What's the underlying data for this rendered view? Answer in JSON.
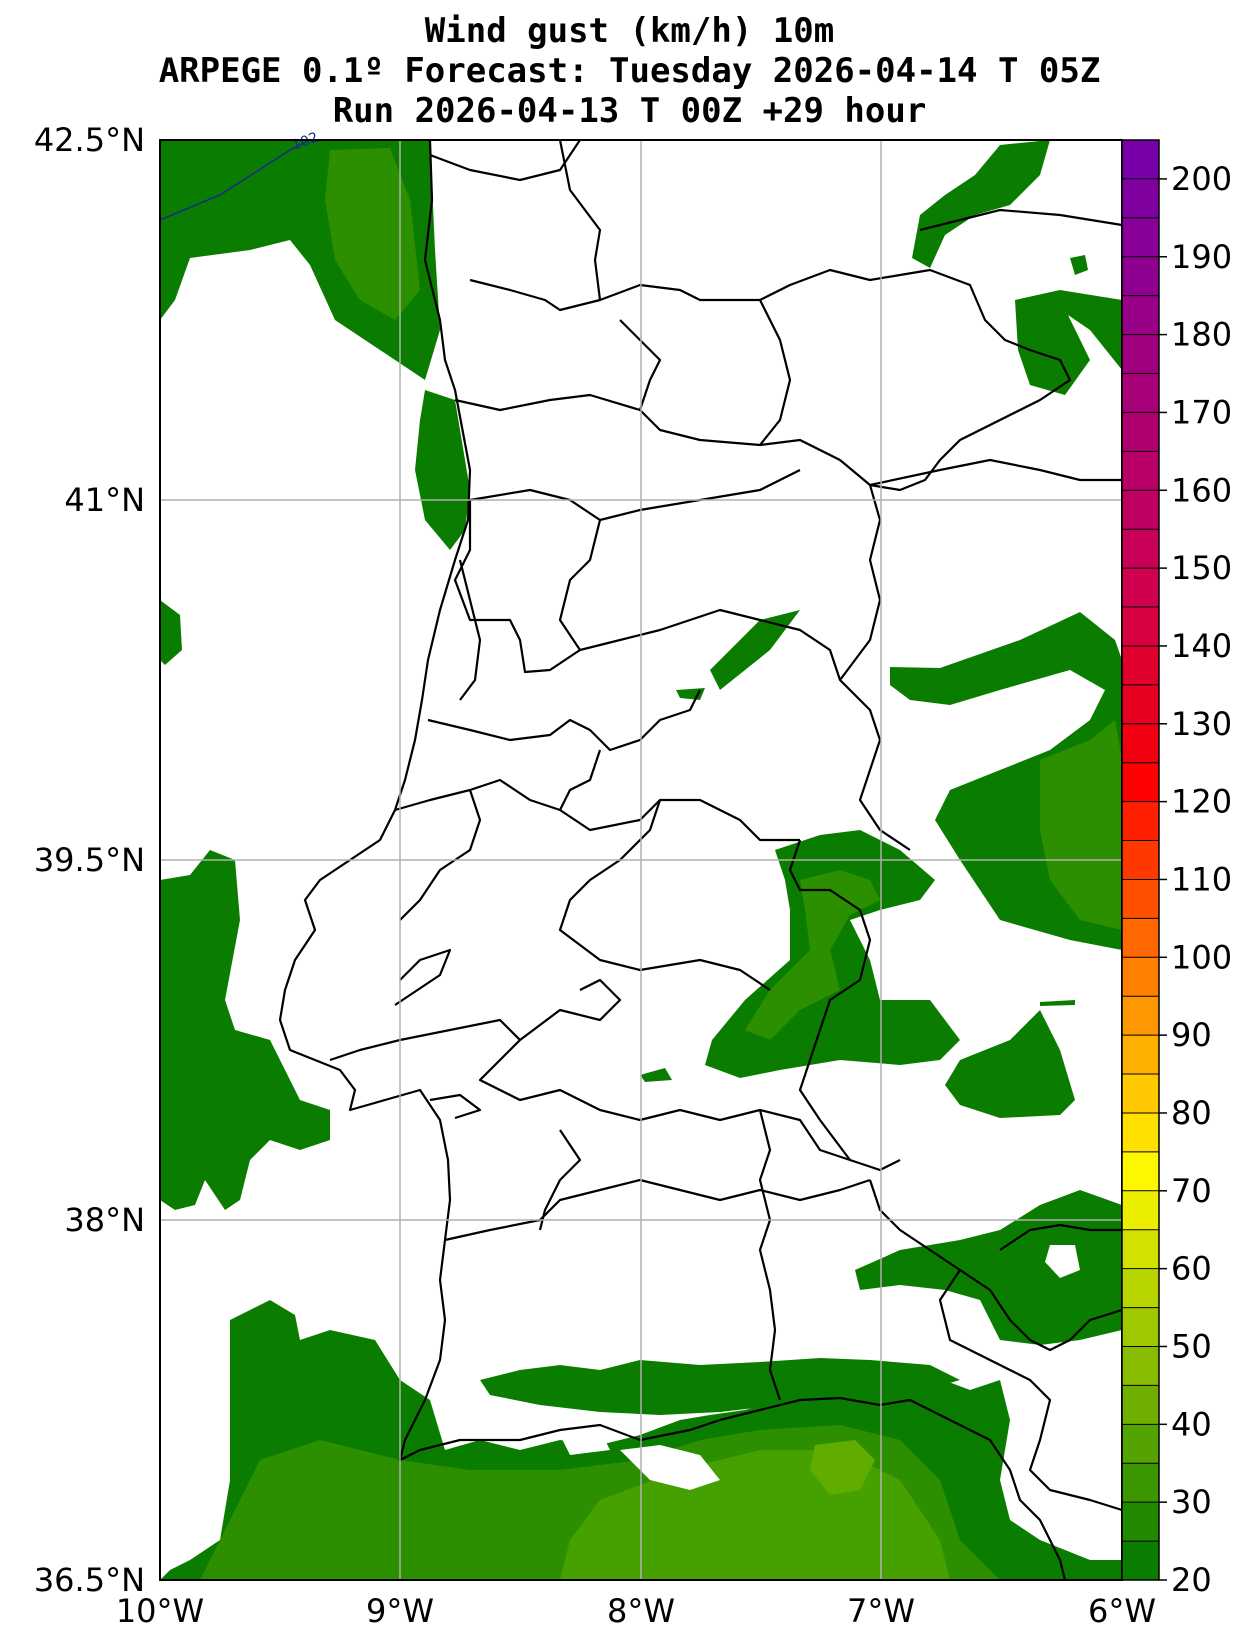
{
  "title": {
    "line1": "Wind gust (km/h) 10m",
    "line2": "ARPEGE 0.1º Forecast: Tuesday 2026-04-14 T 05Z",
    "line3": "Run 2026-04-13 T 00Z +29 hour"
  },
  "axes": {
    "lat_labels": [
      "42.5°N",
      "41°N",
      "39.5°N",
      "38°N",
      "36.5°N"
    ],
    "lon_labels": [
      "10°W",
      "9°W",
      "8°W",
      "7°W",
      "6°W"
    ],
    "lat_range": [
      36.5,
      42.5
    ],
    "lon_range": [
      -10,
      -6
    ],
    "grid": true
  },
  "isobar_label": "102",
  "colorbar": {
    "tick_labels": [
      "20",
      "30",
      "40",
      "50",
      "60",
      "70",
      "80",
      "90",
      "100",
      "110",
      "120",
      "130",
      "140",
      "150",
      "160",
      "170",
      "180",
      "190",
      "200"
    ],
    "range": [
      20,
      205
    ],
    "step": 5,
    "colors": [
      "#0a7d00",
      "#238a00",
      "#3c9600",
      "#55a300",
      "#6eaf00",
      "#87bc00",
      "#a0c800",
      "#b9d500",
      "#d2e100",
      "#ebee00",
      "#fff700",
      "#ffe000",
      "#ffc800",
      "#ffb000",
      "#ff9800",
      "#ff8000",
      "#ff6800",
      "#ff5000",
      "#ff3800",
      "#ff2000",
      "#ff0000",
      "#f00010",
      "#e80020",
      "#e00030",
      "#d80040",
      "#d00050",
      "#c80058",
      "#c00060",
      "#b80068",
      "#b00070",
      "#a80078",
      "#a00080",
      "#980088",
      "#900090",
      "#880098",
      "#8000a0",
      "#7800a8"
    ]
  },
  "colors": {
    "land_line": "#000000",
    "grid": "#b0b0b0",
    "fill_base": "#0a7d00",
    "fill_mid": "#2c8f00",
    "fill_high": "#46a000",
    "fill_top": "#60ad00",
    "isobar": "#1a2a8a"
  }
}
